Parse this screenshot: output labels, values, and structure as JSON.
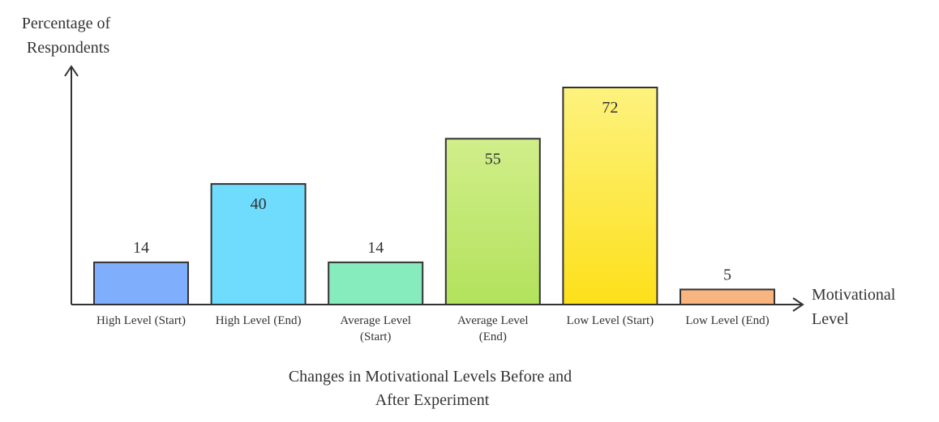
{
  "chart_data": {
    "type": "bar",
    "title": "Changes in Motivational Levels Before and After Experiment",
    "title_lines": [
      "Changes in Motivational Levels Before and",
      "After Experiment"
    ],
    "xlabel": "Motivational Level",
    "xlabel_lines": [
      "Motivational",
      "Level"
    ],
    "ylabel": "Percentage of Respondents",
    "ylabel_lines": [
      "Percentage of",
      "Respondents"
    ],
    "categories": [
      "High Level (Start)",
      "High Level (End)",
      "Average Level (Start)",
      "Average Level (End)",
      "Low Level (Start)",
      "Low Level (End)"
    ],
    "category_lines": [
      [
        "High Level (Start)"
      ],
      [
        "High Level (End)"
      ],
      [
        "Average Level",
        "(Start)"
      ],
      [
        "Average Level",
        "(End)"
      ],
      [
        "Low Level (Start)"
      ],
      [
        "Low Level (End)"
      ]
    ],
    "values": [
      14,
      40,
      14,
      55,
      72,
      5
    ],
    "ylim": [
      0,
      72
    ],
    "grid": false,
    "legend": "none",
    "colors": [
      [
        "#7eaefc",
        "#7eaefc"
      ],
      [
        "#6fdbfd",
        "#6fdbfd"
      ],
      [
        "#86ebbd",
        "#86ebbd"
      ],
      [
        "#d1ee8a",
        "#b2e25c"
      ],
      [
        "#fdf27e",
        "#fde01a"
      ],
      [
        "#f9b57f",
        "#f9b57f"
      ]
    ]
  }
}
